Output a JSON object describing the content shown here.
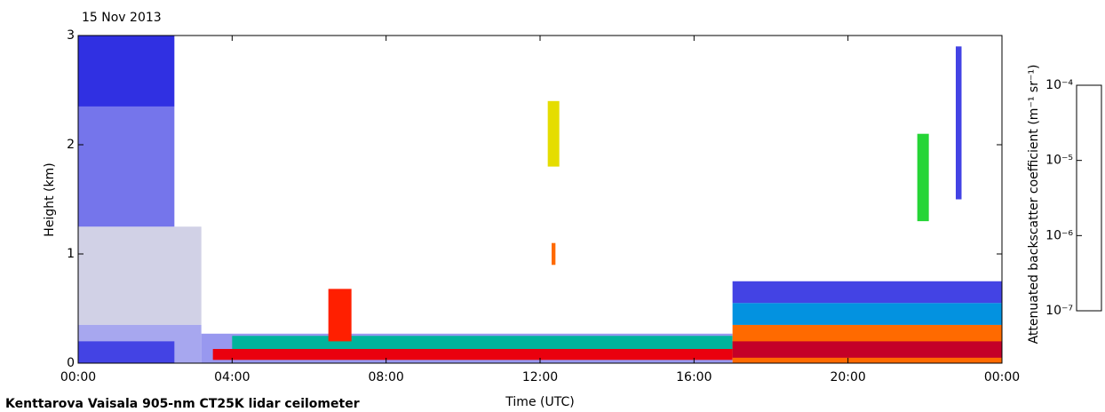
{
  "chart_data": {
    "type": "heatmap",
    "date": "15 Nov 2013",
    "title": "Kenttarova Vaisala 905-nm CT25K lidar ceilometer",
    "x_label": "Time (UTC)",
    "y_label": "Height (km)",
    "colorbar_label": "Attenuated backscatter coefficient (m⁻¹ sr⁻¹)",
    "xlim": [
      0,
      24
    ],
    "xticks": [
      {
        "value": 0,
        "label": "00:00"
      },
      {
        "value": 4,
        "label": "04:00"
      },
      {
        "value": 8,
        "label": "08:00"
      },
      {
        "value": 12,
        "label": "12:00"
      },
      {
        "value": 16,
        "label": "16:00"
      },
      {
        "value": 20,
        "label": "20:00"
      },
      {
        "value": 24,
        "label": "00:00"
      }
    ],
    "ylim": [
      0,
      3
    ],
    "yticks": [
      0,
      1,
      2,
      3
    ],
    "clim": [
      1e-07,
      0.0001
    ],
    "color_log": true,
    "cticks": [
      {
        "value": 1e-07,
        "label": "10⁻⁷"
      },
      {
        "value": 1e-06,
        "label": "10⁻⁶"
      },
      {
        "value": 1e-05,
        "label": "10⁻⁵"
      },
      {
        "value": 0.0001,
        "label": "10⁻⁴"
      }
    ],
    "cells": [
      {
        "x0": 0,
        "x1": 3.2,
        "y0": 0.35,
        "y1": 1.25,
        "value": 1.2e-07
      },
      {
        "x0": 0,
        "x1": 2.5,
        "y0": 1.25,
        "y1": 2.35,
        "value": 4e-07
      },
      {
        "x0": 0,
        "x1": 2.5,
        "y0": 2.35,
        "y1": 3,
        "value": 7e-07
      },
      {
        "x0": 0,
        "x1": 3.2,
        "y0": 0,
        "y1": 0.35,
        "value": 2.5e-07
      },
      {
        "x0": 0,
        "x1": 2.5,
        "y0": 0,
        "y1": 0.2,
        "value": 6e-07
      },
      {
        "x0": 3.2,
        "x1": 17,
        "y0": 0,
        "y1": 0.27,
        "value": 3e-07
      },
      {
        "x0": 4,
        "x1": 17,
        "y0": 0.12,
        "y1": 0.25,
        "value": 3e-06
      },
      {
        "x0": 3.5,
        "x1": 17,
        "y0": 0.03,
        "y1": 0.13,
        "value": 4e-05
      },
      {
        "x0": 6.5,
        "x1": 7.1,
        "y0": 0.2,
        "y1": 0.68,
        "value": 3e-05
      },
      {
        "x0": 12.2,
        "x1": 12.5,
        "y0": 1.8,
        "y1": 2.4,
        "value": 1e-05
      },
      {
        "x0": 12.3,
        "x1": 12.4,
        "y0": 0.9,
        "y1": 1.1,
        "value": 2e-05
      },
      {
        "x0": 17,
        "x1": 24,
        "y0": 0.55,
        "y1": 0.75,
        "value": 6e-07
      },
      {
        "x0": 17,
        "x1": 24,
        "y0": 0.35,
        "y1": 0.55,
        "value": 2e-06
      },
      {
        "x0": 17,
        "x1": 24,
        "y0": 0,
        "y1": 0.35,
        "value": 2e-05
      },
      {
        "x0": 17,
        "x1": 24,
        "y0": 0.05,
        "y1": 0.2,
        "value": 5e-05
      },
      {
        "x0": 21.8,
        "x1": 22.1,
        "y0": 1.3,
        "y1": 2.1,
        "value": 5e-06
      },
      {
        "x0": 22.8,
        "x1": 22.95,
        "y0": 1.5,
        "y1": 2.9,
        "value": 6e-07
      }
    ]
  }
}
